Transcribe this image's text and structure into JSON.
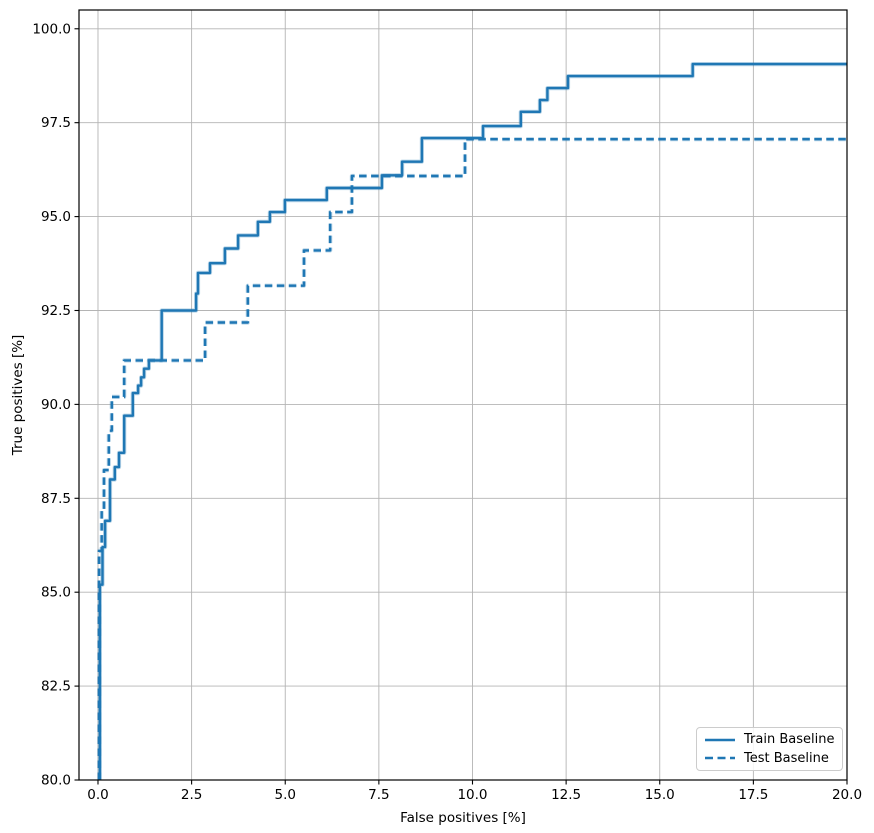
{
  "chart_data": {
    "type": "line",
    "subtype": "roc-step-curves",
    "title": "",
    "xlabel": "False positives [%]",
    "ylabel": "True positives [%]",
    "xlim": [
      -0.507,
      20
    ],
    "ylim": [
      80,
      100.5
    ],
    "grid": true,
    "grid_color": "#b4b4b4",
    "line_color": "#1f77b4",
    "spine_color": "#000000",
    "legend_position": "lower right",
    "x_ticks": [
      0.0,
      2.5,
      5.0,
      7.5,
      10.0,
      12.5,
      15.0,
      17.5,
      20.0
    ],
    "x_tick_labels": [
      "0.0",
      "2.5",
      "5.0",
      "7.5",
      "10.0",
      "12.5",
      "15.0",
      "17.5",
      "20.0"
    ],
    "y_ticks": [
      80.0,
      82.5,
      85.0,
      87.5,
      90.0,
      92.5,
      95.0,
      97.5,
      100.0
    ],
    "y_tick_labels": [
      "80.0",
      "82.5",
      "85.0",
      "87.5",
      "90.0",
      "92.5",
      "95.0",
      "97.5",
      "100.0"
    ],
    "series": [
      {
        "name": "Train Baseline",
        "style": "solid",
        "points": [
          [
            0.05,
            80.0
          ],
          [
            0.05,
            85.2
          ],
          [
            0.12,
            85.2
          ],
          [
            0.12,
            86.2
          ],
          [
            0.19,
            86.2
          ],
          [
            0.19,
            86.9
          ],
          [
            0.32,
            86.9
          ],
          [
            0.32,
            88.0
          ],
          [
            0.45,
            88.0
          ],
          [
            0.45,
            88.33
          ],
          [
            0.56,
            88.33
          ],
          [
            0.56,
            88.71
          ],
          [
            0.7,
            88.71
          ],
          [
            0.7,
            89.7
          ],
          [
            0.93,
            89.7
          ],
          [
            0.93,
            90.3
          ],
          [
            1.07,
            90.3
          ],
          [
            1.07,
            90.5
          ],
          [
            1.15,
            90.5
          ],
          [
            1.15,
            90.72
          ],
          [
            1.23,
            90.72
          ],
          [
            1.23,
            90.95
          ],
          [
            1.36,
            90.95
          ],
          [
            1.36,
            91.17
          ],
          [
            1.7,
            91.17
          ],
          [
            1.7,
            92.5
          ],
          [
            2.62,
            92.5
          ],
          [
            2.62,
            92.95
          ],
          [
            2.67,
            92.95
          ],
          [
            2.67,
            93.5
          ],
          [
            2.99,
            93.5
          ],
          [
            2.99,
            93.76
          ],
          [
            3.39,
            93.76
          ],
          [
            3.39,
            94.15
          ],
          [
            3.74,
            94.15
          ],
          [
            3.74,
            94.5
          ],
          [
            4.27,
            94.5
          ],
          [
            4.27,
            94.86
          ],
          [
            4.59,
            94.86
          ],
          [
            4.59,
            95.12
          ],
          [
            4.99,
            95.12
          ],
          [
            4.99,
            95.44
          ],
          [
            6.11,
            95.44
          ],
          [
            6.11,
            95.76
          ],
          [
            7.58,
            95.76
          ],
          [
            7.58,
            96.1
          ],
          [
            8.12,
            96.1
          ],
          [
            8.12,
            96.46
          ],
          [
            8.65,
            96.46
          ],
          [
            8.65,
            97.09
          ],
          [
            10.28,
            97.09
          ],
          [
            10.28,
            97.41
          ],
          [
            11.29,
            97.41
          ],
          [
            11.29,
            97.79
          ],
          [
            11.8,
            97.79
          ],
          [
            11.8,
            98.1
          ],
          [
            12.0,
            98.1
          ],
          [
            12.0,
            98.42
          ],
          [
            12.55,
            98.42
          ],
          [
            12.55,
            98.74
          ],
          [
            15.88,
            98.74
          ],
          [
            15.88,
            99.06
          ],
          [
            20.0,
            99.06
          ]
        ]
      },
      {
        "name": "Test Baseline",
        "style": "dashed",
        "points": [
          [
            0.03,
            80.0
          ],
          [
            0.03,
            86.1
          ],
          [
            0.1,
            86.1
          ],
          [
            0.1,
            87.2
          ],
          [
            0.16,
            87.2
          ],
          [
            0.16,
            88.25
          ],
          [
            0.29,
            88.25
          ],
          [
            0.29,
            89.3
          ],
          [
            0.37,
            89.3
          ],
          [
            0.37,
            90.2
          ],
          [
            0.7,
            90.2
          ],
          [
            0.7,
            91.17
          ],
          [
            2.86,
            91.17
          ],
          [
            2.86,
            92.18
          ],
          [
            4.0,
            92.18
          ],
          [
            4.0,
            93.16
          ],
          [
            5.5,
            93.16
          ],
          [
            5.5,
            94.1
          ],
          [
            6.2,
            94.1
          ],
          [
            6.2,
            95.12
          ],
          [
            6.78,
            95.12
          ],
          [
            6.78,
            96.08
          ],
          [
            9.8,
            96.08
          ],
          [
            9.8,
            97.06
          ],
          [
            20.0,
            97.06
          ]
        ]
      }
    ]
  }
}
